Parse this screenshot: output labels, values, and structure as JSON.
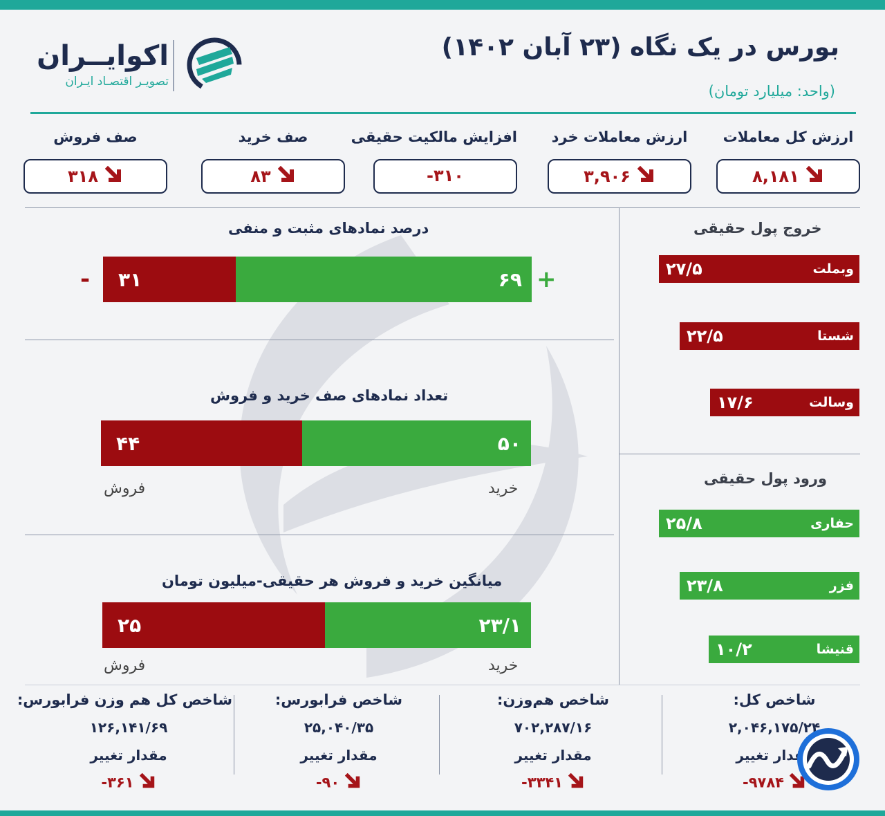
{
  "header": {
    "title": "بورس در یک نگاه (۲۳ آبان ۱۴۰۲)",
    "unit": "(واحد: میلیارد تومان)",
    "logo_name": "اکوایــران",
    "logo_sub": "تصویـر اقتصـاد ایـران"
  },
  "stats": [
    {
      "label": "ارزش کل معاملات",
      "value": "۸,۱۸۱",
      "trend": "down"
    },
    {
      "label": "ارزش معاملات خرد",
      "value": "۳,۹۰۶",
      "trend": "down"
    },
    {
      "label": "افزایش مالکیت حقیقی",
      "value": "-۳۱۰",
      "trend": "none"
    },
    {
      "label": "صف خرید",
      "value": "۸۳",
      "trend": "down"
    },
    {
      "label": "صف فروش",
      "value": "۳۱۸",
      "trend": "down"
    }
  ],
  "symbols_pct": {
    "title": "درصد نمادهای مثبت و منفی",
    "positive": "۶۹",
    "negative": "۳۱",
    "positive_share": 69,
    "plus_sign": "+",
    "minus_sign": "-"
  },
  "queues": {
    "title": "تعداد نمادهای صف خرید و فروش",
    "buy": "۵۰",
    "sell": "۴۴",
    "buy_share": 53.2,
    "buy_label": "خرید",
    "sell_label": "فروش"
  },
  "avg_trade": {
    "title": "میانگین خرید و فروش هر حقیقی-میلیون تومان",
    "buy": "۲۳/۱",
    "sell": "۲۵",
    "buy_share": 48,
    "buy_label": "خرید",
    "sell_label": "فروش"
  },
  "outflow": {
    "title": "خروج پول حقیقی",
    "items": [
      {
        "name": "وبملت",
        "value": "۲۷/۵",
        "amount": 27.5
      },
      {
        "name": "شستا",
        "value": "۲۲/۵",
        "amount": 22.5
      },
      {
        "name": "وسالت",
        "value": "۱۷/۶",
        "amount": 17.6
      }
    ]
  },
  "inflow": {
    "title": "ورود پول حقیقی",
    "items": [
      {
        "name": "حفاری",
        "value": "۲۵/۸",
        "amount": 25.8
      },
      {
        "name": "فزر",
        "value": "۲۳/۸",
        "amount": 23.8
      },
      {
        "name": "قنیشا",
        "value": "۱۰/۲",
        "amount": 10.2
      }
    ]
  },
  "indices": [
    {
      "title": "شاخص کل:",
      "value": "۲,۰۴۶,۱۷۵/۲۴",
      "change_label": "مقدار تغییر",
      "change": "-۹۷۸۴"
    },
    {
      "title": "شاخص هم‌وزن:",
      "value": "۷۰۲,۲۸۷/۱۶",
      "change_label": "مقدار تغییر",
      "change": "-۳۳۴۱"
    },
    {
      "title": "شاخص فرابورس:",
      "value": "۲۵,۰۴۰/۳۵",
      "change_label": "مقدار تغییر",
      "change": "-۹۰"
    },
    {
      "title": "شاخص کل هم وزن فرابورس:",
      "value": "۱۲۶,۱۴۱/۶۹",
      "change_label": "مقدار تغییر",
      "change": "-۳۶۱"
    }
  ],
  "colors": {
    "accent": "#1fa89a",
    "navy": "#1e2b4d",
    "negative": "#9c0c10",
    "positive": "#3aaa3e"
  }
}
